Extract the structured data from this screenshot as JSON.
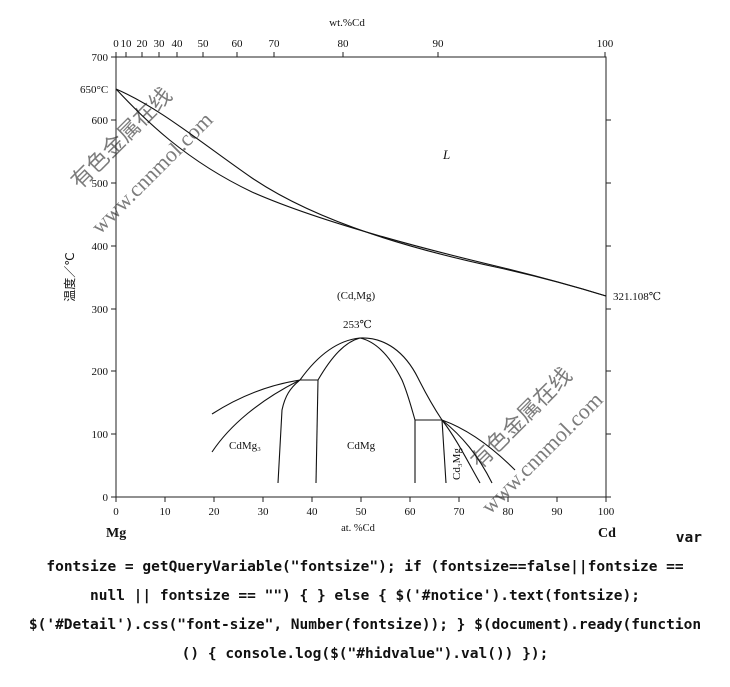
{
  "diagram": {
    "top_axis_title": "wt.%Cd",
    "top_ticks": [
      "0",
      "10",
      "20",
      "30",
      "40",
      "50",
      "60",
      "70",
      "80",
      "90",
      "100"
    ],
    "bottom_ticks": [
      "0",
      "10",
      "20",
      "30",
      "40",
      "50",
      "60",
      "70",
      "80",
      "90",
      "100"
    ],
    "y_ticks": [
      "0",
      "100",
      "200",
      "300",
      "400",
      "500",
      "600",
      "700"
    ],
    "y_axis_title": "温度／℃",
    "x_axis_title": "at. %Cd",
    "left_element": "Mg",
    "right_element": "Cd",
    "labels": {
      "mg_melting": "650°C",
      "cd_melting": "321.108℃",
      "liquid": "L",
      "solid_solution": "(Cd,Mg)",
      "max_temp": "253℃",
      "phase_cdmg3": "CdMg₃",
      "phase_cdmg": "CdMg",
      "phase_cd3mg": "Cd₃Mg"
    },
    "watermarks": [
      "有色金属在线",
      "www.cnnmol.com",
      "有色金属在线",
      "www.cnnmol.com"
    ]
  },
  "code": {
    "line1": "var",
    "line2": "fontsize = getQueryVariable(\"fontsize\"); if (fontsize==false||fontsize ==",
    "line3": "null || fontsize == \"\") { } else { $('#notice').text(fontsize);",
    "line4": "$('#Detail').css(\"font-size\", Number(fontsize)); } $(document).ready(function",
    "line5": "() { console.log($(\"#hidvalue\").val()) });"
  }
}
